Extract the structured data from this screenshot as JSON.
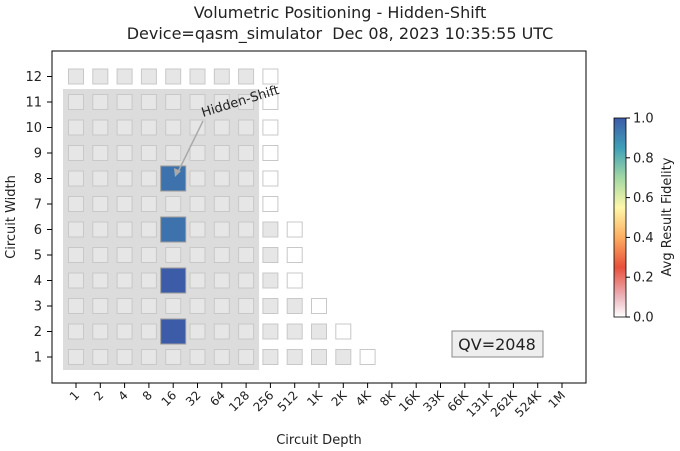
{
  "chart_data": {
    "type": "heatmap",
    "title": "Volumetric Positioning - Hidden-Shift",
    "subtitle": "Device=qasm_simulator  Dec 08, 2023 10:35:55 UTC",
    "xlabel": "Circuit Depth",
    "ylabel": "Circuit Width",
    "x_ticks": [
      "1",
      "2",
      "4",
      "8",
      "16",
      "32",
      "64",
      "128",
      "256",
      "512",
      "1K",
      "2K",
      "4K",
      "8K",
      "16K",
      "33K",
      "66K",
      "131K",
      "262K",
      "524K",
      "1M"
    ],
    "y_ticks": [
      "1",
      "2",
      "3",
      "4",
      "5",
      "6",
      "7",
      "8",
      "9",
      "10",
      "11",
      "12"
    ],
    "colorbar": {
      "label": "Avg Result Fidelity",
      "ticks": [
        "0.0",
        "0.2",
        "0.4",
        "0.6",
        "0.8",
        "1.0"
      ],
      "range": [
        0,
        1
      ]
    },
    "annotations": {
      "arrow_label": "Hidden-Shift",
      "arrow_target": {
        "depth": "16",
        "width": 8
      },
      "qv_label": "QV=2048"
    },
    "qv_region": {
      "max_depth": "128",
      "max_width": 11
    },
    "grid_max_depth_by_width": {
      "1": "4K",
      "2": "2K",
      "3": "1K",
      "4": "512",
      "5": "512",
      "6": "512",
      "7": "256",
      "8": "256",
      "9": "256",
      "10": "256",
      "11": "256",
      "12": "256"
    },
    "results": [
      {
        "depth": "16",
        "width": 2,
        "fidelity": 1.0
      },
      {
        "depth": "16",
        "width": 4,
        "fidelity": 1.0
      },
      {
        "depth": "16",
        "width": 6,
        "fidelity": 0.95
      },
      {
        "depth": "16",
        "width": 8,
        "fidelity": 0.95
      }
    ],
    "grid": false,
    "legend": "right"
  }
}
